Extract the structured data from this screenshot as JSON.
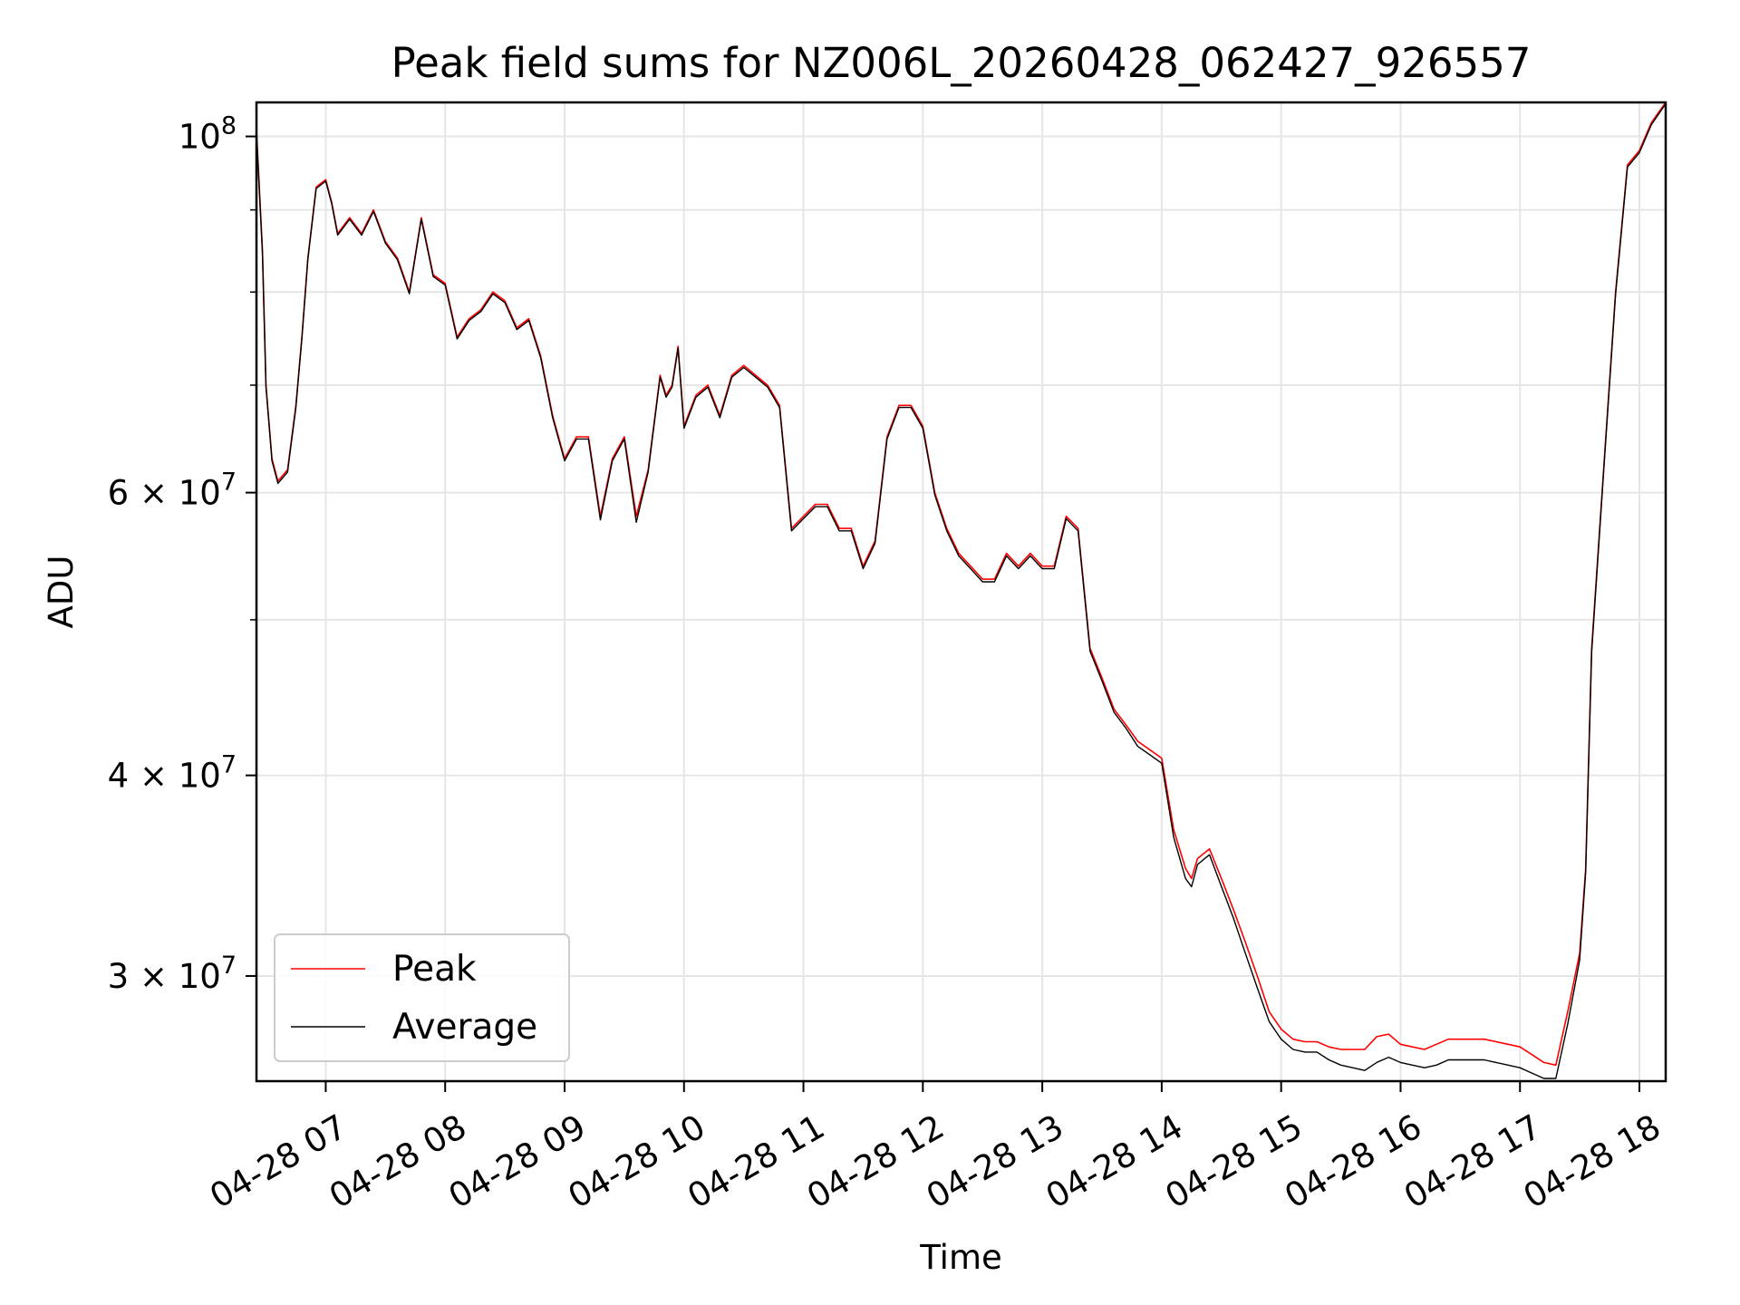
{
  "chart_data": {
    "type": "line",
    "title": "Peak field sums for NZ006L_20260428_062427_926557",
    "xlabel": "Time",
    "ylabel": "ADU",
    "yscale": "log",
    "ylim": [
      25800000,
      105000000
    ],
    "xlim_hours": [
      6.42,
      18.22
    ],
    "grid": true,
    "legend_position": "lower-left",
    "x_ticks": [
      {
        "hour": 7,
        "label": "04-28 07"
      },
      {
        "hour": 8,
        "label": "04-28 08"
      },
      {
        "hour": 9,
        "label": "04-28 09"
      },
      {
        "hour": 10,
        "label": "04-28 10"
      },
      {
        "hour": 11,
        "label": "04-28 11"
      },
      {
        "hour": 12,
        "label": "04-28 12"
      },
      {
        "hour": 13,
        "label": "04-28 13"
      },
      {
        "hour": 14,
        "label": "04-28 14"
      },
      {
        "hour": 15,
        "label": "04-28 15"
      },
      {
        "hour": 16,
        "label": "04-28 16"
      },
      {
        "hour": 17,
        "label": "04-28 17"
      },
      {
        "hour": 18,
        "label": "04-28 18"
      }
    ],
    "y_major_ticks": [
      {
        "value": 100000000,
        "base": "10",
        "exp": "8"
      },
      {
        "value": 60000000,
        "base": "6 × 10",
        "exp": "7"
      },
      {
        "value": 40000000,
        "base": "4 × 10",
        "exp": "7"
      },
      {
        "value": 30000000,
        "base": "3 × 10",
        "exp": "7"
      }
    ],
    "y_minor_grid": [
      50000000,
      70000000,
      80000000,
      90000000
    ],
    "series": [
      {
        "name": "Peak",
        "color": "#ff0000",
        "x": [
          6.42,
          6.47,
          6.5,
          6.55,
          6.6,
          6.68,
          6.75,
          6.8,
          6.85,
          6.92,
          7.0,
          7.05,
          7.1,
          7.2,
          7.3,
          7.4,
          7.5,
          7.6,
          7.7,
          7.8,
          7.9,
          8.0,
          8.1,
          8.2,
          8.3,
          8.4,
          8.5,
          8.6,
          8.7,
          8.8,
          8.9,
          9.0,
          9.1,
          9.2,
          9.3,
          9.4,
          9.5,
          9.6,
          9.7,
          9.8,
          9.85,
          9.9,
          9.95,
          10.0,
          10.1,
          10.2,
          10.3,
          10.4,
          10.5,
          10.6,
          10.7,
          10.8,
          10.9,
          11.0,
          11.1,
          11.2,
          11.3,
          11.4,
          11.5,
          11.6,
          11.7,
          11.8,
          11.9,
          12.0,
          12.1,
          12.2,
          12.3,
          12.4,
          12.5,
          12.6,
          12.7,
          12.8,
          12.9,
          13.0,
          13.1,
          13.2,
          13.3,
          13.4,
          13.5,
          13.6,
          13.7,
          13.8,
          13.9,
          14.0,
          14.1,
          14.2,
          14.25,
          14.3,
          14.4,
          14.5,
          14.6,
          14.7,
          14.8,
          14.9,
          15.0,
          15.1,
          15.2,
          15.3,
          15.4,
          15.5,
          15.6,
          15.7,
          15.8,
          15.9,
          16.0,
          16.1,
          16.2,
          16.3,
          16.4,
          16.5,
          16.6,
          16.7,
          16.8,
          16.9,
          17.0,
          17.1,
          17.2,
          17.3,
          17.4,
          17.5,
          17.55,
          17.6,
          17.7,
          17.8,
          17.9,
          18.0,
          18.1,
          18.22
        ],
        "y": [
          101000000,
          85000000,
          70000000,
          63000000,
          61000000,
          62000000,
          68000000,
          75000000,
          84000000,
          93000000,
          94000000,
          91000000,
          87000000,
          89000000,
          87000000,
          90000000,
          86000000,
          84000000,
          80000000,
          89000000,
          82000000,
          81000000,
          75000000,
          77000000,
          78000000,
          80000000,
          79000000,
          76000000,
          77000000,
          73000000,
          67000000,
          63000000,
          65000000,
          65000000,
          58000000,
          63000000,
          65000000,
          58000000,
          62000000,
          71000000,
          69000000,
          70000000,
          74000000,
          66000000,
          69000000,
          70000000,
          67000000,
          71000000,
          72000000,
          71000000,
          70000000,
          68000000,
          57000000,
          58000000,
          59000000,
          59000000,
          57000000,
          57000000,
          54000000,
          56000000,
          65000000,
          68000000,
          68000000,
          66000000,
          60000000,
          57000000,
          55000000,
          54000000,
          53000000,
          53000000,
          55000000,
          54000000,
          55000000,
          54000000,
          54000000,
          58000000,
          57000000,
          48000000,
          46000000,
          44000000,
          43000000,
          42000000,
          41500000,
          41000000,
          37000000,
          35000000,
          34500000,
          35500000,
          36000000,
          34500000,
          33000000,
          31500000,
          30000000,
          28500000,
          27800000,
          27400000,
          27300000,
          27300000,
          27100000,
          27000000,
          27000000,
          27000000,
          27500000,
          27600000,
          27200000,
          27100000,
          27000000,
          27200000,
          27400000,
          27400000,
          27400000,
          27400000,
          27300000,
          27200000,
          27100000,
          26800000,
          26500000,
          26400000,
          28500000,
          31000000,
          35000000,
          48000000,
          62000000,
          80000000,
          96000000,
          98000000,
          102000000,
          105000000
        ]
      },
      {
        "name": "Average",
        "color": "#000000",
        "x": [
          6.42,
          6.47,
          6.5,
          6.55,
          6.6,
          6.68,
          6.75,
          6.8,
          6.85,
          6.92,
          7.0,
          7.05,
          7.1,
          7.2,
          7.3,
          7.4,
          7.5,
          7.6,
          7.7,
          7.8,
          7.9,
          8.0,
          8.1,
          8.2,
          8.3,
          8.4,
          8.5,
          8.6,
          8.7,
          8.8,
          8.9,
          9.0,
          9.1,
          9.2,
          9.3,
          9.4,
          9.5,
          9.6,
          9.7,
          9.8,
          9.85,
          9.9,
          9.95,
          10.0,
          10.1,
          10.2,
          10.3,
          10.4,
          10.5,
          10.6,
          10.7,
          10.8,
          10.9,
          11.0,
          11.1,
          11.2,
          11.3,
          11.4,
          11.5,
          11.6,
          11.7,
          11.8,
          11.9,
          12.0,
          12.1,
          12.2,
          12.3,
          12.4,
          12.5,
          12.6,
          12.7,
          12.8,
          12.9,
          13.0,
          13.1,
          13.2,
          13.3,
          13.4,
          13.5,
          13.6,
          13.7,
          13.8,
          13.9,
          14.0,
          14.1,
          14.2,
          14.25,
          14.3,
          14.4,
          14.5,
          14.6,
          14.7,
          14.8,
          14.9,
          15.0,
          15.1,
          15.2,
          15.3,
          15.4,
          15.5,
          15.6,
          15.7,
          15.8,
          15.9,
          16.0,
          16.1,
          16.2,
          16.3,
          16.4,
          16.5,
          16.6,
          16.7,
          16.8,
          16.9,
          17.0,
          17.1,
          17.2,
          17.3,
          17.4,
          17.5,
          17.55,
          17.6,
          17.7,
          17.8,
          17.9,
          18.0,
          18.1,
          18.22
        ],
        "y": [
          100500000,
          84500000,
          69800000,
          62800000,
          60800000,
          61800000,
          67800000,
          74800000,
          83800000,
          92800000,
          93800000,
          90800000,
          86800000,
          88800000,
          86800000,
          89800000,
          85800000,
          83800000,
          79800000,
          88800000,
          81800000,
          80800000,
          74800000,
          76800000,
          77800000,
          79800000,
          78800000,
          75800000,
          76800000,
          72800000,
          66800000,
          62800000,
          64800000,
          64800000,
          57700000,
          62800000,
          64800000,
          57500000,
          61800000,
          70800000,
          68800000,
          69800000,
          73800000,
          65800000,
          68800000,
          69800000,
          66800000,
          70800000,
          71800000,
          70800000,
          69800000,
          67800000,
          56800000,
          57800000,
          58800000,
          58800000,
          56800000,
          56800000,
          53800000,
          55800000,
          64800000,
          67800000,
          67800000,
          65800000,
          59800000,
          56800000,
          54800000,
          53800000,
          52800000,
          52800000,
          54800000,
          53800000,
          54800000,
          53800000,
          53800000,
          57800000,
          56800000,
          47800000,
          45800000,
          43800000,
          42800000,
          41700000,
          41200000,
          40700000,
          36600000,
          34500000,
          34100000,
          35200000,
          35700000,
          34100000,
          32600000,
          31000000,
          29500000,
          28100000,
          27400000,
          27000000,
          26900000,
          26900000,
          26600000,
          26400000,
          26300000,
          26200000,
          26500000,
          26700000,
          26500000,
          26400000,
          26300000,
          26400000,
          26600000,
          26600000,
          26600000,
          26600000,
          26500000,
          26400000,
          26300000,
          26100000,
          25900000,
          25900000,
          28000000,
          30700000,
          34800000,
          47700000,
          61800000,
          79700000,
          95700000,
          97700000,
          101700000,
          104800000
        ]
      }
    ]
  }
}
